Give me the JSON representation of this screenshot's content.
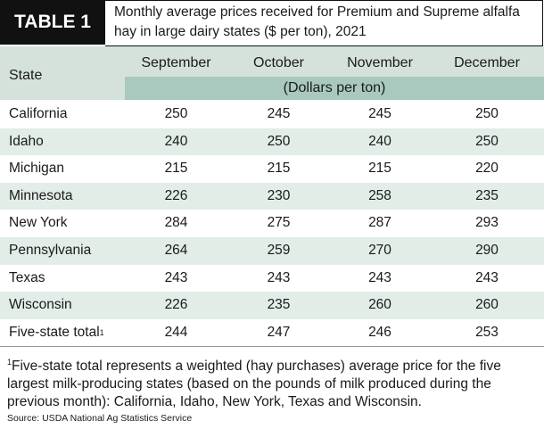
{
  "header": {
    "label": "TABLE 1",
    "title": "Monthly average prices received for Premium and Supreme alfalfa hay in large dairy states ($ per ton), 2021"
  },
  "table": {
    "columns": [
      "State",
      "September",
      "October",
      "November",
      "December"
    ],
    "unit": "(Dollars per ton)",
    "rows": [
      [
        "California",
        250,
        245,
        245,
        250
      ],
      [
        "Idaho",
        240,
        250,
        240,
        250
      ],
      [
        "Michigan",
        215,
        215,
        215,
        220
      ],
      [
        "Minnesota",
        226,
        230,
        258,
        235
      ],
      [
        "New York",
        284,
        275,
        287,
        293
      ],
      [
        "Pennsylvania",
        264,
        259,
        270,
        290
      ],
      [
        "Texas",
        243,
        243,
        243,
        243
      ],
      [
        "Wisconsin",
        226,
        235,
        260,
        260
      ]
    ],
    "total": {
      "label": "Five-state total",
      "note": "1",
      "values": [
        244,
        247,
        246,
        253
      ]
    }
  },
  "footnote": {
    "mark": "1",
    "text": "Five-state total represents a weighted (hay purchases) average price for the five largest milk-producing states (based on the pounds of milk produced during the previous month): California, Idaho, New York, Texas and Wisconsin."
  },
  "source": "Source: USDA National Ag Statistics Service"
}
